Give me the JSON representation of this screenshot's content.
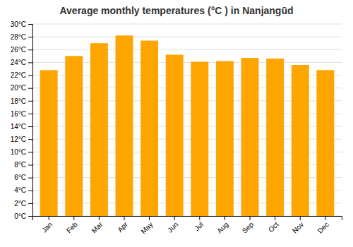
{
  "chart_data": {
    "type": "bar",
    "title": "Average monthly temperatures (°C ) in Nanjangūd",
    "categories": [
      "Jan",
      "Feb",
      "Mar",
      "Apr",
      "May",
      "Jun",
      "Jul",
      "Aug",
      "Sep",
      "Oct",
      "Nov",
      "Dec"
    ],
    "values": [
      22.8,
      25.0,
      27.0,
      28.2,
      27.4,
      25.2,
      24.1,
      24.2,
      24.7,
      24.6,
      23.6,
      22.8
    ],
    "color": "#FFA500",
    "ylim": [
      0,
      30
    ],
    "yticks": [
      {
        "value": 0,
        "label": "0°C"
      },
      {
        "value": 2,
        "label": "2°C"
      },
      {
        "value": 4,
        "label": "4°C"
      },
      {
        "value": 6,
        "label": "6°C"
      },
      {
        "value": 8,
        "label": "8°C"
      },
      {
        "value": 10,
        "label": "10°C"
      },
      {
        "value": 12,
        "label": "12°C"
      },
      {
        "value": 14,
        "label": "14°C"
      },
      {
        "value": 16,
        "label": "16°C"
      },
      {
        "value": 18,
        "label": "18°C"
      },
      {
        "value": 20,
        "label": "20°C"
      },
      {
        "value": 22,
        "label": "22°C"
      },
      {
        "value": 24,
        "label": "24°C"
      },
      {
        "value": 26,
        "label": "26°C"
      },
      {
        "value": 28,
        "label": "28°C"
      },
      {
        "value": 30,
        "label": "30°C"
      }
    ],
    "grid": true
  }
}
